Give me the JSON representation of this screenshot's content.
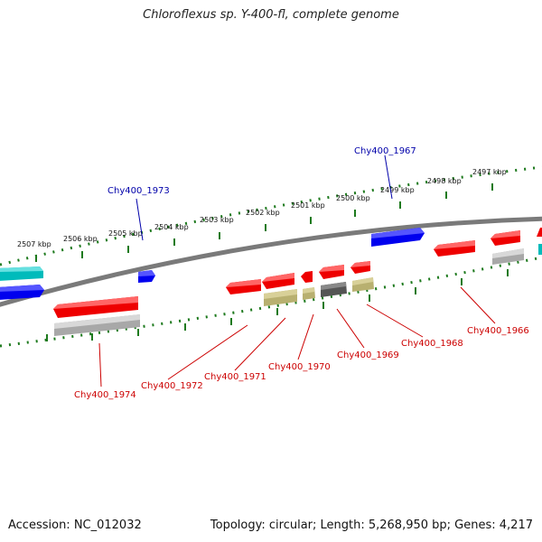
{
  "title": "Chloroflexus sp. Y-400-fl, complete genome",
  "footer": {
    "accession": "Accession: NC_012032",
    "info": "Topology: circular; Length: 5,268,950 bp; Genes: 4,217"
  },
  "scale_labels": [
    "2507 kbp",
    "2506 kbp",
    "2505 kbp",
    "2504 kbp",
    "2503 kbp",
    "2502 kbp",
    "2501 kbp",
    "2500 kbp",
    "2499 kbp",
    "2498 kbp",
    "2497 kbp"
  ],
  "gene_labels": {
    "top": [
      "Chy400_1973",
      "Chy400_1967"
    ],
    "bottom": [
      "Chy400_1974",
      "Chy400_1972",
      "Chy400_1971",
      "Chy400_1970",
      "Chy400_1969",
      "Chy400_1968",
      "Chy400_1966"
    ]
  },
  "colors": {
    "backbone": "#7a7a7a",
    "scale_green": "#1e7a1e",
    "top_strand_gene": "#0000ee",
    "top_strand_gene_alt": "#00bbbb",
    "bottom_strand_gene": "#ee0000",
    "bottom_strand_rna": "#b8b070",
    "bottom_strand_grey": "#a8a8a8",
    "dark_grey": "#555555",
    "label_red": "#cc0000",
    "label_blue": "#0000aa"
  }
}
